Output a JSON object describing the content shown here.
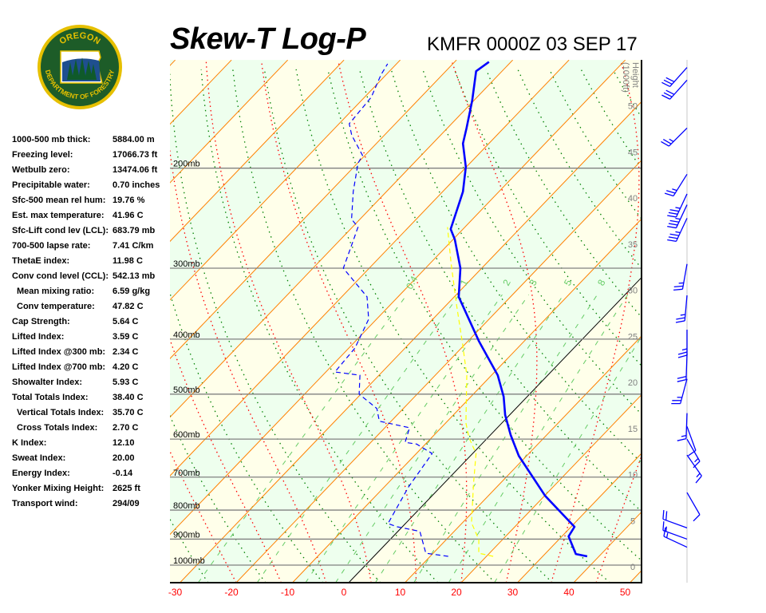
{
  "title": "Skew-T Log-P",
  "station_time": "KMFR 0000Z 03 SEP 17",
  "logo": {
    "top_text": "OREGON",
    "bottom_text": "DEPARTMENT OF FORESTRY"
  },
  "indices": [
    {
      "label": "1000-500 mb thick:",
      "value": "5884.00 m"
    },
    {
      "label": "Freezing level:",
      "value": "17066.73 ft"
    },
    {
      "label": "Wetbulb zero:",
      "value": "13474.06 ft"
    },
    {
      "label": "Precipitable water:",
      "value": "0.70 inches"
    },
    {
      "label": "Sfc-500 mean rel hum:",
      "value": "19.76 %"
    },
    {
      "label": "Est. max temperature:",
      "value": "41.96 C"
    },
    {
      "label": "Sfc-Lift cond lev (LCL):",
      "value": "683.79 mb"
    },
    {
      "label": "700-500 lapse rate:",
      "value": "7.41 C/km"
    },
    {
      "label": "ThetaE index:",
      "value": "11.98 C"
    },
    {
      "label": "Conv cond level (CCL):",
      "value": "542.13 mb"
    },
    {
      "label": "Mean mixing ratio:",
      "value": "6.59 g/kg",
      "indent": true
    },
    {
      "label": "Conv temperature:",
      "value": "47.82 C",
      "indent": true
    },
    {
      "label": "Cap Strength:",
      "value": "5.64 C"
    },
    {
      "label": "Lifted Index:",
      "value": "3.59 C"
    },
    {
      "label": "Lifted Index @300 mb:",
      "value": "2.34 C"
    },
    {
      "label": "Lifted Index @700 mb:",
      "value": "4.20 C"
    },
    {
      "label": "Showalter Index:",
      "value": "5.93 C"
    },
    {
      "label": "Total Totals Index:",
      "value": "38.40 C"
    },
    {
      "label": "Vertical Totals Index:",
      "value": "35.70 C",
      "indent": true
    },
    {
      "label": "Cross Totals Index:",
      "value": "2.70 C",
      "indent": true
    },
    {
      "label": "K Index:",
      "value": "12.10"
    },
    {
      "label": "Sweat Index:",
      "value": "20.00"
    },
    {
      "label": "Energy Index:",
      "value": "-0.14"
    },
    {
      "label": "Yonker Mixing Height:",
      "value": "2625 ft"
    },
    {
      "label": "Transport wind:",
      "value": "294/09"
    }
  ],
  "chart_data": {
    "type": "line",
    "title": "Skew-T Log-P",
    "x_ticks": [
      -30,
      -20,
      -10,
      0,
      10,
      20,
      30,
      40,
      50
    ],
    "xlim_at_bottom": [
      -30,
      50
    ],
    "plim": [
      1074,
      129
    ],
    "pressure_levels": [
      {
        "p": 200,
        "label": "200mb"
      },
      {
        "p": 300,
        "label": "300mb"
      },
      {
        "p": 400,
        "label": "400mb"
      },
      {
        "p": 500,
        "label": "500mb"
      },
      {
        "p": 600,
        "label": "600mb"
      },
      {
        "p": 700,
        "label": "700mb"
      },
      {
        "p": 800,
        "label": "800mb"
      },
      {
        "p": 900,
        "label": "900mb"
      },
      {
        "p": 1000,
        "label": "1000mb"
      }
    ],
    "height_axis": {
      "label": "Height (1000ft)",
      "ticks": [
        0,
        5,
        10,
        15,
        20,
        25,
        30,
        35,
        40,
        45,
        50
      ]
    },
    "mixing_ratio_lines": [
      {
        "w": 0.4,
        "label": "0.4"
      },
      {
        "w": 1,
        "label": "1"
      },
      {
        "w": 2,
        "label": "2"
      },
      {
        "w": 3,
        "label": "3"
      },
      {
        "w": 5,
        "label": "5"
      },
      {
        "w": 8,
        "label": "8"
      },
      {
        "w": 12,
        "label": ""
      },
      {
        "w": 20,
        "label": ""
      }
    ],
    "log_pressure_scale": true,
    "grid": true,
    "series": [
      {
        "kind": "temperature",
        "color": "#0000ff",
        "style": "solid",
        "points": [
          [
            965,
            37.9
          ],
          [
            956,
            35.5
          ],
          [
            890,
            31.2
          ],
          [
            856,
            30.6
          ],
          [
            755,
            20.1
          ],
          [
            642,
            8.6
          ],
          [
            590,
            3.6
          ],
          [
            544,
            -0.8
          ],
          [
            505,
            -4.2
          ],
          [
            463,
            -8.9
          ],
          [
            403,
            -18.1
          ],
          [
            337,
            -29.2
          ],
          [
            300,
            -33.8
          ],
          [
            267,
            -39.7
          ],
          [
            256,
            -42.2
          ],
          [
            233,
            -44.8
          ],
          [
            220,
            -46.4
          ],
          [
            199,
            -50.1
          ],
          [
            181,
            -54.6
          ],
          [
            170,
            -56.6
          ],
          [
            152,
            -60.3
          ],
          [
            135,
            -64.6
          ],
          [
            130,
            -63.9
          ]
        ]
      },
      {
        "kind": "dewpoint",
        "color": "#0000ff",
        "style": "dashed",
        "points": [
          [
            965,
            13.2
          ],
          [
            953,
            8.7
          ],
          [
            872,
            3.9
          ],
          [
            856,
            -0.9
          ],
          [
            845,
            -3.1
          ],
          [
            728,
            -5.7
          ],
          [
            636,
            -7.2
          ],
          [
            612,
            -11.6
          ],
          [
            608,
            -13.9
          ],
          [
            573,
            -15.6
          ],
          [
            558,
            -22.1
          ],
          [
            530,
            -24.7
          ],
          [
            500,
            -30.3
          ],
          [
            463,
            -33.4
          ],
          [
            457,
            -38.4
          ],
          [
            415,
            -38.9
          ],
          [
            369,
            -41.4
          ],
          [
            337,
            -45.5
          ],
          [
            300,
            -54.6
          ],
          [
            276,
            -56.8
          ],
          [
            254,
            -59.0
          ],
          [
            246,
            -61.5
          ],
          [
            220,
            -65.9
          ],
          [
            196,
            -69.9
          ],
          [
            190,
            -70.4
          ],
          [
            175,
            -75.8
          ],
          [
            167,
            -78.2
          ],
          [
            150,
            -78.8
          ],
          [
            137,
            -80.9
          ],
          [
            131,
            -81.6
          ]
        ]
      },
      {
        "kind": "wetbulb",
        "color": "#ffff00",
        "style": "dashed",
        "points": [
          [
            965,
            21.2
          ],
          [
            953,
            18.1
          ],
          [
            902,
            15.8
          ],
          [
            842,
            11.6
          ],
          [
            717,
            5.2
          ],
          [
            636,
            0.6
          ],
          [
            596,
            -3.4
          ],
          [
            562,
            -6.4
          ],
          [
            463,
            -14.4
          ],
          [
            407,
            -20.6
          ],
          [
            349,
            -28.1
          ],
          [
            294,
            -36.3
          ],
          [
            254,
            -43.1
          ]
        ]
      }
    ],
    "winds": [
      {
        "p": 133,
        "dir": 222,
        "spd": 30
      },
      {
        "p": 140,
        "dir": 222,
        "spd": 30
      },
      {
        "p": 170,
        "dir": 225,
        "spd": 25
      },
      {
        "p": 205,
        "dir": 212,
        "spd": 25
      },
      {
        "p": 222,
        "dir": 205,
        "spd": 35
      },
      {
        "p": 232,
        "dir": 205,
        "spd": 35
      },
      {
        "p": 245,
        "dir": 205,
        "spd": 35
      },
      {
        "p": 295,
        "dir": 190,
        "spd": 25
      },
      {
        "p": 335,
        "dir": 185,
        "spd": 25
      },
      {
        "p": 385,
        "dir": 180,
        "spd": 25
      },
      {
        "p": 425,
        "dir": 182,
        "spd": 20
      },
      {
        "p": 470,
        "dir": 195,
        "spd": 25
      },
      {
        "p": 540,
        "dir": 182,
        "spd": 15
      },
      {
        "p": 570,
        "dir": 160,
        "spd": 10
      },
      {
        "p": 600,
        "dir": 150,
        "spd": 15
      },
      {
        "p": 640,
        "dir": 145,
        "spd": 15
      },
      {
        "p": 745,
        "dir": 150,
        "spd": 10
      },
      {
        "p": 860,
        "dir": 290,
        "spd": 20
      },
      {
        "p": 900,
        "dir": 290,
        "spd": 15
      },
      {
        "p": 930,
        "dir": 295,
        "spd": 15
      }
    ],
    "colors": {
      "isotherm": "#ff8000",
      "zero_isotherm": "#000000",
      "isobar": "#808080",
      "dry_adiabat": "#008000",
      "moist_adiabat": "#ff0000",
      "mixing_ratio": "#66cc66",
      "band_a": "#ffffea",
      "band_b": "#eeffee",
      "axis_labels": "#ff0000",
      "height_labels": "#808080",
      "wind": "#0000ff"
    }
  }
}
